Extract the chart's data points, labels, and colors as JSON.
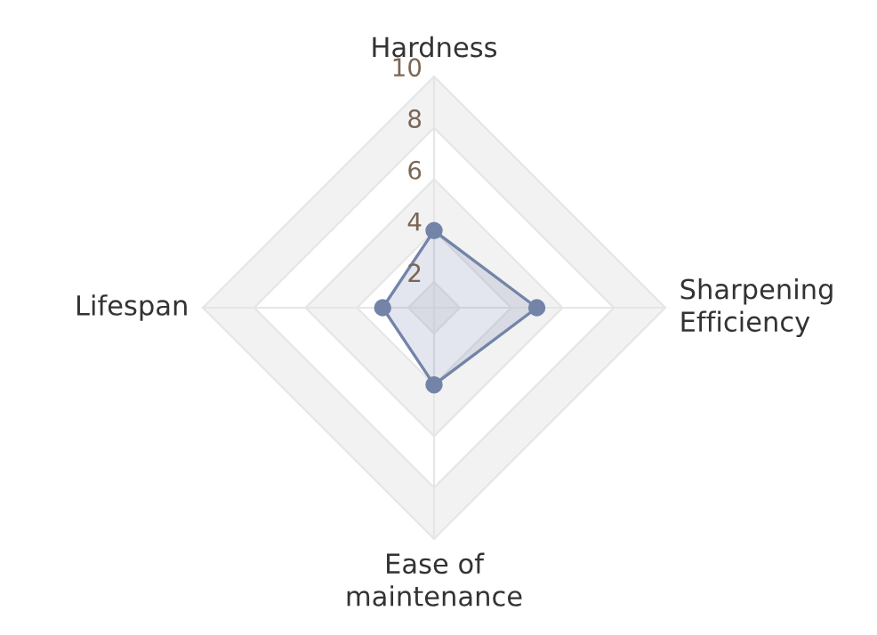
{
  "chart_data": {
    "type": "radar",
    "categories": [
      "Hardness",
      "Sharpening\nEfficiency",
      "Ease of\nmaintenance",
      "Lifespan"
    ],
    "series": [
      {
        "color": "#7384a8",
        "values": [
          4,
          5,
          4,
          3
        ]
      }
    ],
    "ylim": [
      1,
      10
    ],
    "yticks": [
      2,
      4,
      6,
      8,
      10
    ],
    "marker": "circle",
    "grid": true
  }
}
